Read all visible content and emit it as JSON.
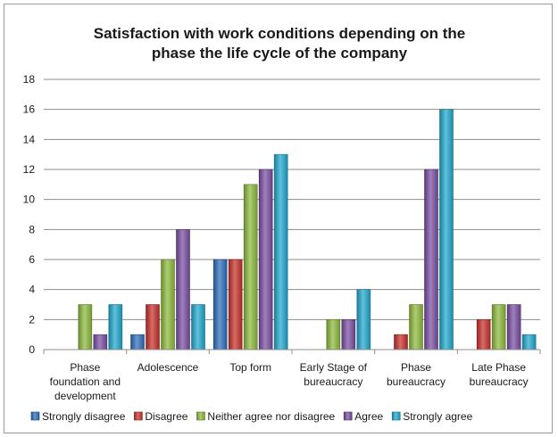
{
  "chart_data": {
    "type": "bar",
    "title": "Satisfaction with work conditions depending on the phase the life cycle of the company",
    "title_lines": [
      "Satisfaction with work conditions depending on the",
      "phase the life cycle of the company"
    ],
    "xlabel": "",
    "ylabel": "",
    "ylim": [
      0,
      18
    ],
    "yticks": [
      0,
      2,
      4,
      6,
      8,
      10,
      12,
      14,
      16,
      18
    ],
    "grid": true,
    "legend_position": "bottom",
    "categories": [
      "Phase foundation and development",
      "Adolescence",
      "Top form",
      "Early Stage of bureaucracy",
      "Phase bureaucracy",
      "Late Phase bureaucracy"
    ],
    "category_lines": [
      [
        "Phase",
        "foundation and",
        "development"
      ],
      [
        "Adolescence"
      ],
      [
        "Top form"
      ],
      [
        "Early Stage of",
        "bureaucracy"
      ],
      [
        "Phase",
        "bureaucracy"
      ],
      [
        "Late Phase",
        "bureaucracy"
      ]
    ],
    "series": [
      {
        "name": "Strongly disagree",
        "color": "#2e6fbd",
        "values": [
          0,
          1,
          6,
          0,
          0,
          0
        ]
      },
      {
        "name": "Disagree",
        "color": "#c8312b",
        "values": [
          0,
          3,
          6,
          0,
          1,
          2
        ]
      },
      {
        "name": "Neither agree nor disagree",
        "color": "#8dba3c",
        "values": [
          3,
          6,
          11,
          2,
          3,
          3
        ]
      },
      {
        "name": "Agree",
        "color": "#7a4fa3",
        "values": [
          1,
          8,
          12,
          2,
          12,
          3
        ]
      },
      {
        "name": "Strongly agree",
        "color": "#21a9cf",
        "values": [
          3,
          3,
          13,
          4,
          16,
          1
        ]
      }
    ]
  }
}
